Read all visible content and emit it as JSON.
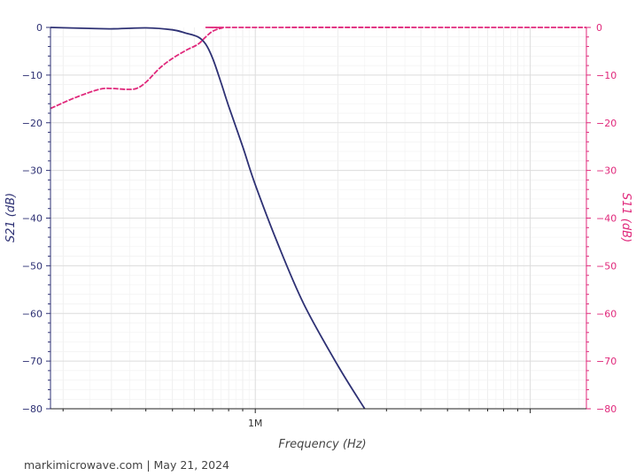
{
  "chart_data": {
    "type": "line",
    "xlabel": "Frequency (Hz)",
    "ylabel": "S21 (dB)",
    "y2label": "S11 (dB)",
    "x_scale": "log",
    "xlim": [
      180000,
      16000000
    ],
    "ylim": [
      -80,
      0
    ],
    "y2lim": [
      -80,
      0
    ],
    "grid": true,
    "legend": "none",
    "x_ticks": [
      {
        "value": 1000000,
        "label": "1M"
      }
    ],
    "y_ticks": [
      0,
      -10,
      -20,
      -30,
      -40,
      -50,
      -60,
      -70,
      -80
    ],
    "y_tick_labels": [
      "0",
      "−10",
      "−20",
      "−30",
      "−40",
      "−50",
      "−60",
      "−70",
      "−80"
    ],
    "colors": {
      "s21": "#2e3174",
      "s11": "#e0287b"
    },
    "series": [
      {
        "axis": "left",
        "color": "#2e3174",
        "points": [
          [
            180000,
            0
          ],
          [
            250000,
            -0.2
          ],
          [
            300000,
            -0.3
          ],
          [
            400000,
            -0.1
          ],
          [
            500000,
            -0.5
          ],
          [
            560000,
            -1.2
          ],
          [
            620000,
            -2.0
          ],
          [
            660000,
            -3.5
          ],
          [
            700000,
            -6.5
          ],
          [
            750000,
            -11.5
          ],
          [
            800000,
            -16.5
          ],
          [
            900000,
            -25
          ],
          [
            1000000,
            -33
          ],
          [
            1200000,
            -45
          ],
          [
            1500000,
            -58
          ],
          [
            2000000,
            -71
          ],
          [
            2500000,
            -80
          ]
        ]
      },
      {
        "axis": "right",
        "color": "#e0287b",
        "points": [
          [
            180000,
            -17
          ],
          [
            220000,
            -14.8
          ],
          [
            270000,
            -13.0
          ],
          [
            300000,
            -12.8
          ],
          [
            340000,
            -13.0
          ],
          [
            370000,
            -12.8
          ],
          [
            400000,
            -11.5
          ],
          [
            450000,
            -8.5
          ],
          [
            500000,
            -6.5
          ],
          [
            560000,
            -4.8
          ],
          [
            620000,
            -3.5
          ],
          [
            660000,
            -2.0
          ],
          [
            700000,
            -0.8
          ],
          [
            760000,
            -0.1
          ],
          [
            850000,
            0
          ],
          [
            16000000,
            0
          ]
        ]
      }
    ]
  },
  "footer": "markimicrowave.com | May 21, 2024"
}
